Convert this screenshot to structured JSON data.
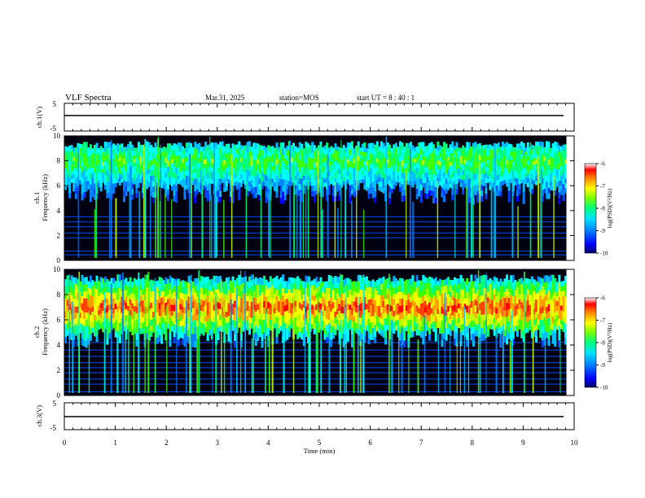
{
  "header": {
    "title": "VLF Spectra",
    "date": "Mar.31, 2025",
    "station": "station=MOS",
    "start": "start  UT =  8 : 40 : 1"
  },
  "chart_data": [
    {
      "type": "line",
      "panel": "ch1-waveform",
      "ylabel": "ch.1(V)",
      "ylim": [
        -5,
        5
      ],
      "yticks": [
        "5",
        "-5"
      ],
      "xlim": [
        0,
        10
      ],
      "series": [
        {
          "x": [
            0,
            9.85
          ],
          "values": [
            0,
            0
          ]
        }
      ]
    },
    {
      "type": "heatmap",
      "panel": "ch1-spectrogram",
      "ylabel": "ch.1\nFrequency (kHz)",
      "ylim": [
        0,
        10
      ],
      "yticks": [
        "0",
        "2",
        "4",
        "6",
        "8",
        "10"
      ],
      "xlim": [
        0,
        10
      ],
      "data_xmax": 9.85,
      "colorbar": {
        "label": "log(PSD)(V²/Hz)",
        "range": [
          -10,
          -6
        ],
        "ticks": [
          "-6",
          "-7",
          "-8",
          "-9",
          "-10"
        ]
      }
    },
    {
      "type": "heatmap",
      "panel": "ch2-spectrogram",
      "ylabel": "ch.2\nFrequency (kHz)",
      "ylim": [
        0,
        10
      ],
      "yticks": [
        "0",
        "2",
        "4",
        "6",
        "8",
        "10"
      ],
      "xlim": [
        0,
        10
      ],
      "data_xmax": 9.85,
      "colorbar": {
        "label": "log(PSD)(V²/Hz)",
        "range": [
          -10,
          -6
        ],
        "ticks": [
          "-6",
          "-7",
          "-8",
          "-9",
          "-10"
        ]
      }
    },
    {
      "type": "line",
      "panel": "ch3-waveform",
      "ylabel": "ch.3(V)",
      "ylim": [
        -5,
        5
      ],
      "yticks": [
        "5",
        "-5"
      ],
      "xlim": [
        0,
        10
      ],
      "series": [
        {
          "x": [
            0,
            9.85
          ],
          "values": [
            0,
            0
          ]
        }
      ]
    }
  ],
  "xaxis": {
    "label": "Time  (min)",
    "ticks": [
      "0",
      "1",
      "2",
      "3",
      "4",
      "5",
      "6",
      "7",
      "8",
      "9",
      "10"
    ]
  },
  "colors": {
    "background": "#000000",
    "trace": "#000000"
  }
}
